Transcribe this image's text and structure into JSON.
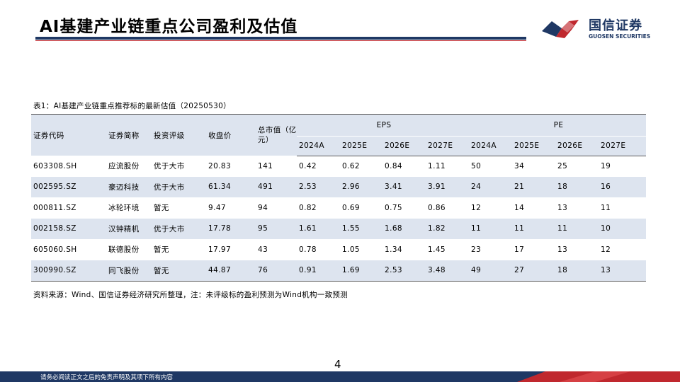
{
  "header": {
    "title": "AI基建产业链重点公司盈利及估值",
    "logo_cn": "国信证券",
    "logo_en": "GUOSEN SECURITIES"
  },
  "table": {
    "caption": "表1：AI基建产业链重点推荐标的最新估值（20250530）",
    "headers": {
      "code": "证券代码",
      "name": "证券简称",
      "rating": "投资评级",
      "close": "收盘价",
      "mktcap": "总市值（亿元）",
      "eps_group": "EPS",
      "pe_group": "PE",
      "eps_years": [
        "2024A",
        "2025E",
        "2026E",
        "2027E"
      ],
      "pe_years": [
        "2024A",
        "2025E",
        "2026E",
        "2027E"
      ]
    },
    "rows": [
      {
        "code": "603308.SH",
        "name": "应流股份",
        "rating": "优于大市",
        "close": "20.83",
        "mktcap": "141",
        "eps": [
          "0.42",
          "0.62",
          "0.84",
          "1.11"
        ],
        "pe": [
          "50",
          "34",
          "25",
          "19"
        ]
      },
      {
        "code": "002595.SZ",
        "name": "豪迈科技",
        "rating": "优于大市",
        "close": "61.34",
        "mktcap": "491",
        "eps": [
          "2.53",
          "2.96",
          "3.41",
          "3.91"
        ],
        "pe": [
          "24",
          "21",
          "18",
          "16"
        ]
      },
      {
        "code": "000811.SZ",
        "name": "冰轮环境",
        "rating": "暂无",
        "close": "9.47",
        "mktcap": "94",
        "eps": [
          "0.82",
          "0.69",
          "0.75",
          "0.86"
        ],
        "pe": [
          "12",
          "14",
          "13",
          "11"
        ]
      },
      {
        "code": "002158.SZ",
        "name": "汉钟精机",
        "rating": "优于大市",
        "close": "17.78",
        "mktcap": "95",
        "eps": [
          "1.61",
          "1.55",
          "1.68",
          "1.82"
        ],
        "pe": [
          "11",
          "11",
          "11",
          "10"
        ]
      },
      {
        "code": "605060.SH",
        "name": "联德股份",
        "rating": "暂无",
        "close": "17.97",
        "mktcap": "43",
        "eps": [
          "0.78",
          "1.05",
          "1.34",
          "1.45"
        ],
        "pe": [
          "23",
          "17",
          "13",
          "12"
        ]
      },
      {
        "code": "300990.SZ",
        "name": "同飞股份",
        "rating": "暂无",
        "close": "44.87",
        "mktcap": "76",
        "eps": [
          "0.91",
          "1.69",
          "2.53",
          "3.48"
        ],
        "pe": [
          "49",
          "27",
          "18",
          "13"
        ]
      }
    ],
    "source": "资料来源：Wind、国信证券经济研究所整理，注：未评级标的盈利预测为Wind机构一致预测"
  },
  "page_number": "4",
  "footer": {
    "disclaimer": "请务必阅读正文之后的免责声明及其项下所有内容"
  },
  "colors": {
    "navy": "#1f3864",
    "red": "#c0282e",
    "row_band": "#dde4ef"
  }
}
